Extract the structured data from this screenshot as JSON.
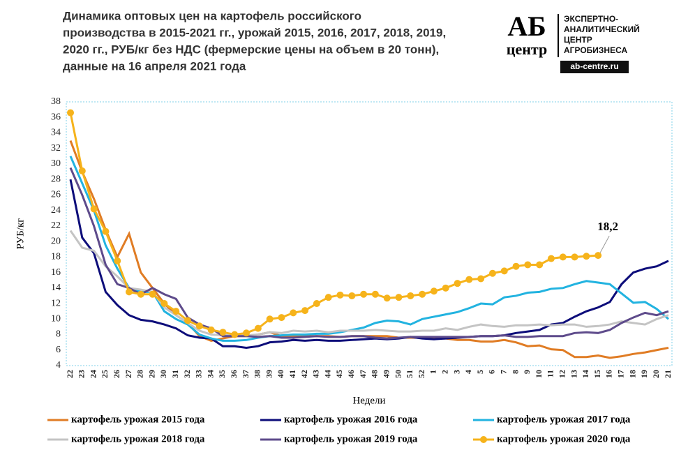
{
  "logo": {
    "mark_top": "АБ",
    "mark_bottom": "центр",
    "lines": [
      "ЭКСПЕРТНО-",
      "АНАЛИТИЧЕСКИЙ",
      "ЦЕНТР",
      "АГРОБИЗНЕСА"
    ],
    "url": "ab-centre.ru"
  },
  "chart_data": {
    "type": "line",
    "title": [
      "Динамика оптовых цен на картофель российского",
      "производства в 2015-2021 гг., урожай 2015, 2016, 2017, 2018, 2019,",
      "2020 гг., РУБ/кг без НДС (фермерские цены на объем в 20 тонн),",
      "данные на  16 апреля 2021 года"
    ],
    "x_label": "Недели",
    "y_label": "РУБ/кг",
    "categories": [
      "22",
      "23",
      "24",
      "25",
      "26",
      "27",
      "28",
      "29",
      "30",
      "31",
      "32",
      "33",
      "34",
      "35",
      "36",
      "37",
      "38",
      "39",
      "40",
      "41",
      "42",
      "43",
      "44",
      "45",
      "46",
      "47",
      "48",
      "49",
      "50",
      "51",
      "52",
      "1",
      "2",
      "3",
      "4",
      "5",
      "6",
      "7",
      "8",
      "9",
      "10",
      "11",
      "12",
      "13",
      "14",
      "15",
      "16",
      "17",
      "18",
      "19",
      "20",
      "21"
    ],
    "ylim": [
      4,
      38
    ],
    "yticks": [
      4,
      6,
      8,
      10,
      12,
      14,
      16,
      18,
      20,
      22,
      24,
      26,
      28,
      30,
      32,
      34,
      36,
      38
    ],
    "grid": false,
    "legend": "bottom",
    "series": [
      {
        "name": "картофель урожая 2015 года",
        "color": "#e07c24",
        "values": [
          33,
          29,
          25.5,
          21.5,
          18,
          21,
          16,
          14,
          12,
          10.5,
          9.5,
          7.8,
          7.2,
          7.5,
          7.8,
          7.8,
          8,
          8.3,
          7.8,
          7.8,
          7.8,
          7.8,
          7.8,
          7.7,
          7.8,
          7.8,
          7.8,
          7.8,
          7.6,
          7.6,
          7.6,
          7.5,
          7.5,
          7.3,
          7.3,
          7.1,
          7.1,
          7.3,
          7,
          6.5,
          6.6,
          6.1,
          6,
          5.1,
          5.1,
          5.3,
          5,
          5.2,
          5.5,
          5.7,
          6,
          6.3
        ]
      },
      {
        "name": "картофель урожая 2016 года",
        "color": "#0d0d7a",
        "values": [
          28,
          20.5,
          18.5,
          13.5,
          11.8,
          10.5,
          9.9,
          9.7,
          9.3,
          8.8,
          7.9,
          7.6,
          7.5,
          6.5,
          6.5,
          6.3,
          6.5,
          7,
          7.1,
          7.3,
          7.2,
          7.3,
          7.2,
          7.2,
          7.3,
          7.4,
          7.5,
          7.4,
          7.5,
          7.7,
          7.5,
          7.4,
          7.5,
          7.6,
          7.7,
          7.8,
          7.8,
          7.9,
          8.2,
          8.4,
          8.6,
          9.3,
          9.5,
          10.3,
          11,
          11.5,
          12.2,
          14.5,
          16,
          16.5,
          16.8,
          17.5
        ]
      },
      {
        "name": "картофель урожая 2017 года",
        "color": "#22b3e0",
        "values": [
          31,
          27.5,
          24,
          19.5,
          16.5,
          14,
          13.5,
          13.5,
          11,
          10,
          9.3,
          8,
          7.5,
          7.2,
          7.2,
          7.3,
          7.6,
          7.8,
          7.9,
          8,
          8,
          8.1,
          8.1,
          8.3,
          8.6,
          8.9,
          9.5,
          9.8,
          9.7,
          9.3,
          10,
          10.3,
          10.6,
          10.9,
          11.4,
          12,
          11.9,
          12.8,
          13,
          13.4,
          13.5,
          13.9,
          14,
          14.5,
          14.9,
          14.7,
          14.5,
          13.3,
          12.1,
          12.2,
          11.3,
          10
        ]
      },
      {
        "name": "картофель урожая 2018 года",
        "color": "#c4c4c4",
        "values": [
          21.4,
          19.2,
          18.8,
          16.8,
          15.5,
          14,
          13.8,
          13.5,
          11.5,
          10.5,
          9.5,
          8.5,
          8,
          7.9,
          8,
          7.9,
          8,
          8.3,
          8.2,
          8.5,
          8.4,
          8.5,
          8.3,
          8.5,
          8.5,
          8.5,
          8.6,
          8.5,
          8.4,
          8.4,
          8.5,
          8.5,
          8.8,
          8.6,
          9,
          9.3,
          9.1,
          9,
          9.2,
          9.2,
          9.3,
          9.2,
          9.3,
          9.3,
          9,
          9.1,
          9.3,
          9.7,
          9.5,
          9.3,
          10,
          10.5
        ]
      },
      {
        "name": "картофель урожая 2019 года",
        "color": "#5e4b8b",
        "values": [
          29.5,
          26,
          22,
          17,
          14.5,
          14,
          13.2,
          14,
          13.2,
          12.6,
          10.2,
          9.3,
          8.8,
          7.8,
          7.8,
          7.8,
          7.7,
          7.8,
          7.6,
          7.6,
          7.7,
          7.8,
          7.7,
          7.7,
          7.8,
          7.8,
          7.6,
          7.5,
          7.6,
          7.7,
          7.7,
          7.7,
          7.7,
          7.7,
          7.7,
          7.8,
          7.8,
          7.9,
          7.7,
          7.7,
          7.8,
          7.8,
          7.8,
          8.2,
          8.3,
          8.2,
          8.6,
          9.5,
          10.2,
          10.8,
          10.5,
          11
        ]
      },
      {
        "name": "картофель урожая 2020 года",
        "color": "#f6b31b",
        "marker": "circle",
        "values": [
          36.6,
          29.1,
          24.2,
          21.3,
          17.5,
          13.5,
          13.2,
          13.2,
          12,
          11,
          9.8,
          9.1,
          8.6,
          8.3,
          8,
          8.2,
          8.8,
          10,
          10.2,
          10.8,
          11.1,
          12,
          12.8,
          13.1,
          13,
          13.2,
          13.2,
          12.7,
          12.8,
          13,
          13.2,
          13.6,
          14,
          14.6,
          15.1,
          15.2,
          15.9,
          16.2,
          16.8,
          17,
          17,
          17.8,
          18,
          18,
          18.1,
          18.2,
          null,
          null,
          null,
          null,
          null,
          null
        ],
        "value_labels": [
          null,
          null,
          null,
          null,
          null,
          null,
          null,
          null,
          null,
          null,
          null,
          null,
          null,
          null,
          null,
          null,
          null,
          null,
          null,
          null,
          null,
          null,
          null,
          null,
          null,
          null,
          null,
          null,
          null,
          null,
          null,
          null,
          null,
          null,
          null,
          null,
          null,
          null,
          null,
          null,
          null,
          null,
          null,
          null,
          null,
          "18,2",
          null,
          null,
          null,
          null,
          null,
          null
        ]
      }
    ]
  }
}
